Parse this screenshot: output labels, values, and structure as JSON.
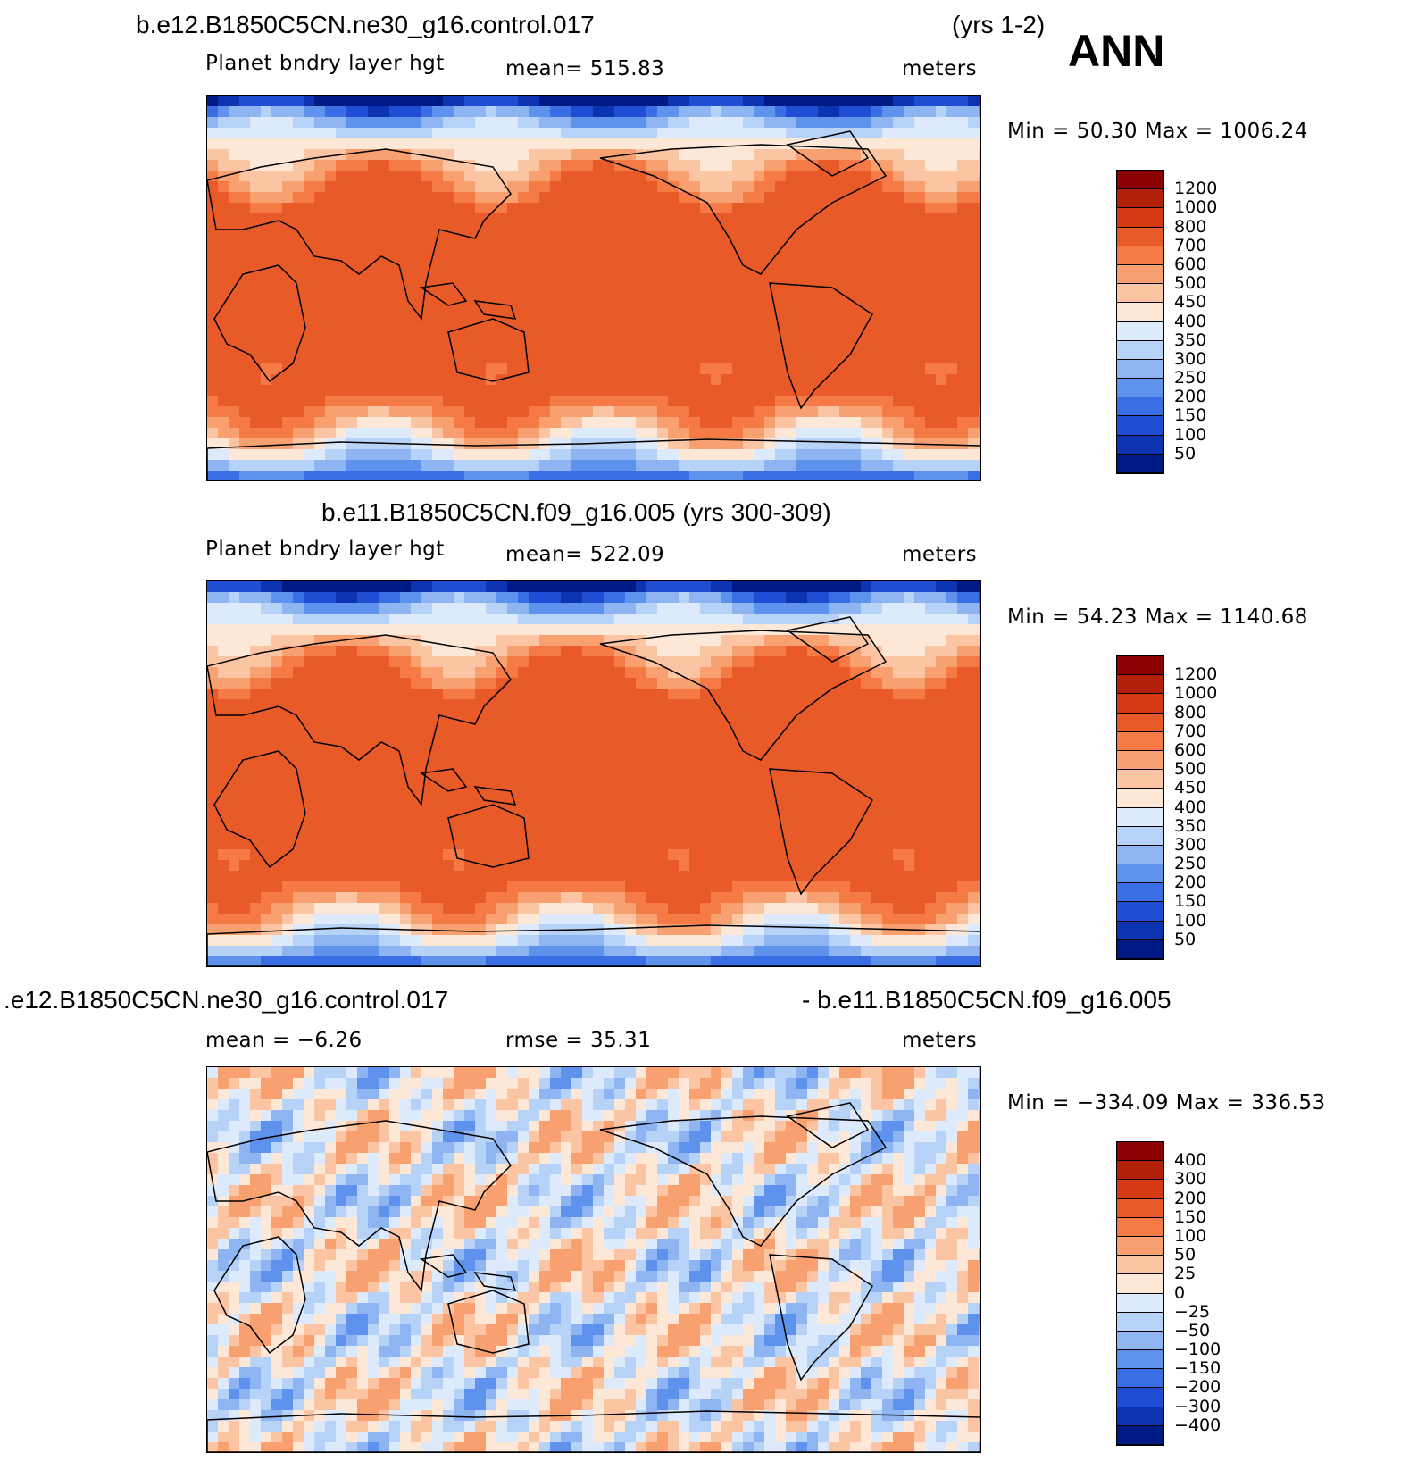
{
  "season": "ANN",
  "panels": [
    {
      "title": "b.e12.B1850C5CN.ne30_g16.control.017",
      "title_right": "(yrs 1-2)",
      "variable": "Planet bndry layer hgt",
      "stat": "mean=  515.83",
      "units": "meters",
      "minmax": "Min =   50.30 Max = 1006.24",
      "levels": [
        "1200",
        "1000",
        "800",
        "700",
        "600",
        "500",
        "450",
        "400",
        "350",
        "300",
        "250",
        "200",
        "150",
        "100",
        "50"
      ],
      "colors": [
        "#8b0000",
        "#b3200a",
        "#d53a12",
        "#e85a28",
        "#f57a45",
        "#f9a070",
        "#fbc5a4",
        "#fde7d6",
        "#dceafb",
        "#b7d2f7",
        "#8eb5f2",
        "#5f92ec",
        "#3a6ee4",
        "#1f4ed5",
        "#0c33b0",
        "#001a85"
      ],
      "palette": "pos"
    },
    {
      "title": "b.e11.B1850C5CN.f09_g16.005 (yrs 300-309)",
      "variable": "Planet bndry layer hgt",
      "stat": "mean=  522.09",
      "units": "meters",
      "minmax": "Min =   54.23 Max = 1140.68",
      "levels": [
        "1200",
        "1000",
        "800",
        "700",
        "600",
        "500",
        "450",
        "400",
        "350",
        "300",
        "250",
        "200",
        "150",
        "100",
        "50"
      ],
      "colors": [
        "#8b0000",
        "#b3200a",
        "#d53a12",
        "#e85a28",
        "#f57a45",
        "#f9a070",
        "#fbc5a4",
        "#fde7d6",
        "#dceafb",
        "#b7d2f7",
        "#8eb5f2",
        "#5f92ec",
        "#3a6ee4",
        "#1f4ed5",
        "#0c33b0",
        "#001a85"
      ],
      "palette": "pos"
    },
    {
      "title": ".e12.B1850C5CN.ne30_g16.control.017",
      "title_right": "- b.e11.B1850C5CN.f09_g16.005",
      "stat_left": "mean =   −6.26",
      "stat": "rmse =   35.31",
      "units": "meters",
      "minmax": "Min = −334.09 Max = 336.53",
      "levels": [
        "400",
        "300",
        "200",
        "150",
        "100",
        "50",
        "25",
        "0",
        "−25",
        "−50",
        "−100",
        "−150",
        "−200",
        "−300",
        "−400"
      ],
      "colors": [
        "#8b0000",
        "#b3200a",
        "#d53a12",
        "#e85a28",
        "#f57a45",
        "#f9a070",
        "#fbc5a4",
        "#fde7d6",
        "#dceafb",
        "#b7d2f7",
        "#8eb5f2",
        "#5f92ec",
        "#3a6ee4",
        "#1f4ed5",
        "#0c33b0",
        "#001a85"
      ],
      "palette": "diff"
    }
  ]
}
